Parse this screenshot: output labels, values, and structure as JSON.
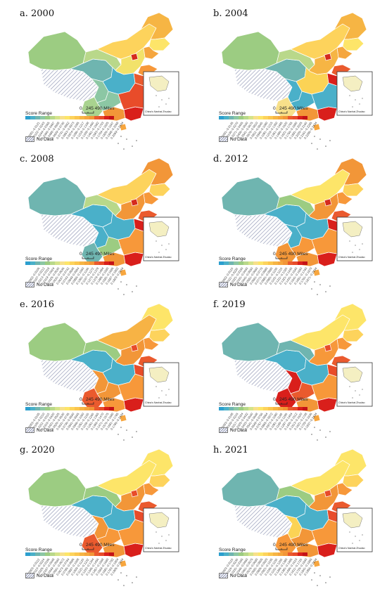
{
  "panels": [
    {
      "title": "a. 2000",
      "colors": {
        "xinjiang": "#9ccc82",
        "tibet": "hatch",
        "qinghai": "#6fb5b0",
        "gansu": "#b9d88a",
        "innermongolia": "#fdd35c",
        "heilongjiang": "#f6b544",
        "jilin": "#fde569",
        "liaoning": "#f5a63e",
        "north": "#f2e26a",
        "beijing": "#d52a1e",
        "shandong": "#f7983a",
        "central": "#4ab0c9",
        "sichuan": "#8cc7a4",
        "yunnan": "#a9d38f",
        "guizhou": "#8cc7a4",
        "guangxi": "#f29638",
        "guangdong": "#d91f1b",
        "southeast": "#e84c2a",
        "jiangsu": "#ea5a2e",
        "hainan": "#f7a63e",
        "taiwan": "#5aaed2"
      }
    },
    {
      "title": "b. 2004",
      "colors": {
        "xinjiang": "#9ccc82",
        "tibet": "hatch",
        "qinghai": "#6fb5b0",
        "gansu": "#b9d88a",
        "innermongolia": "#fdd35c",
        "heilongjiang": "#f6b544",
        "jilin": "#fde569",
        "liaoning": "#f5a63e",
        "north": "#f6b544",
        "beijing": "#d52a1e",
        "shandong": "#ea5a2e",
        "central": "#fbd355",
        "sichuan": "#4ab0c9",
        "yunnan": "#f7e08a",
        "guizhou": "#4ab0c9",
        "guangxi": "#f29638",
        "guangdong": "#d91f1b",
        "southeast": "#4ab0c9",
        "jiangsu": "#d91f1b",
        "hainan": "#f7a63e",
        "taiwan": "#5aaed2"
      }
    },
    {
      "title": "c. 2008",
      "colors": {
        "xinjiang": "#6fb5b0",
        "tibet": "hatch",
        "qinghai": "#4ab0c9",
        "gansu": "#b9d88a",
        "innermongolia": "#fdd35c",
        "heilongjiang": "#f29638",
        "jilin": "#fdd35c",
        "liaoning": "#f7983a",
        "north": "#f29638",
        "beijing": "#d52a1e",
        "shandong": "#ea5a2e",
        "central": "#4ab0c9",
        "sichuan": "#4ab0c9",
        "yunnan": "#6fb5b0",
        "guizhou": "#9ccc82",
        "guangxi": "#f29638",
        "guangdong": "#d91f1b",
        "southeast": "#f7983a",
        "jiangsu": "#d91f1b",
        "hainan": "#f7a63e",
        "taiwan": "#5aaed2"
      }
    },
    {
      "title": "d. 2012",
      "colors": {
        "xinjiang": "#6fb5b0",
        "tibet": "hatch",
        "qinghai": "#4ab0c9",
        "gansu": "#9ccc82",
        "innermongolia": "#fde569",
        "heilongjiang": "#f29638",
        "jilin": "#fdd35c",
        "liaoning": "#f7983a",
        "north": "#f29638",
        "beijing": "#d52a1e",
        "shandong": "#ea5a2e",
        "central": "#4ab0c9",
        "sichuan": "#4ab0c9",
        "yunnan": "#f29638",
        "guizhou": "#f7983a",
        "guangxi": "#f29638",
        "guangdong": "#d91f1b",
        "southeast": "#f7983a",
        "jiangsu": "#d91f1b",
        "hainan": "#f7a63e",
        "taiwan": "#5aaed2"
      }
    },
    {
      "title": "e. 2016",
      "colors": {
        "xinjiang": "#9ccc82",
        "tibet": "hatch",
        "qinghai": "#4ab0c9",
        "gansu": "#9ccc82",
        "innermongolia": "#f7b345",
        "heilongjiang": "#fde569",
        "jilin": "#fdd35c",
        "liaoning": "#f7983a",
        "north": "#f29638",
        "beijing": "#e84c2a",
        "shandong": "#ea5a2e",
        "central": "#4ab0c9",
        "sichuan": "#f29638",
        "yunnan": "#ea5a2e",
        "guizhou": "#f29638",
        "guangxi": "#f7983a",
        "guangdong": "#d91f1b",
        "southeast": "#f7983a",
        "jiangsu": "#e84c2a",
        "hainan": "#f7a63e",
        "taiwan": "#5aaed2"
      }
    },
    {
      "title": "f. 2019",
      "colors": {
        "xinjiang": "#6fb5b0",
        "tibet": "hatch",
        "qinghai": "#4ab0c9",
        "gansu": "#6fb5b0",
        "innermongolia": "#fde569",
        "heilongjiang": "#fde569",
        "jilin": "#fdd35c",
        "liaoning": "#f7983a",
        "north": "#f7983a",
        "beijing": "#e84c2a",
        "shandong": "#ea5a2e",
        "central": "#4ab0c9",
        "sichuan": "#d91f1b",
        "yunnan": "#d91f1b",
        "guizhou": "#ea5a2e",
        "guangxi": "#f29638",
        "guangdong": "#d91f1b",
        "southeast": "#f7983a",
        "jiangsu": "#e84c2a",
        "hainan": "#f7a63e",
        "taiwan": "#5aaed2"
      }
    },
    {
      "title": "g. 2020",
      "colors": {
        "xinjiang": "#9ccc82",
        "tibet": "hatch",
        "qinghai": "#4ab0c9",
        "gansu": "#9ccc82",
        "innermongolia": "#fde569",
        "heilongjiang": "#fde569",
        "jilin": "#fdd35c",
        "liaoning": "#f7983a",
        "north": "#f29638",
        "beijing": "#e84c2a",
        "shandong": "#ea5a2e",
        "central": "#4ab0c9",
        "sichuan": "#f29638",
        "yunnan": "#ea5a2e",
        "guizhou": "#f7983a",
        "guangxi": "#f29638",
        "guangdong": "#d91f1b",
        "southeast": "#f7983a",
        "jiangsu": "#e84c2a",
        "hainan": "#f7a63e",
        "taiwan": "#5aaed2"
      }
    },
    {
      "title": "h. 2021",
      "colors": {
        "xinjiang": "#6fb5b0",
        "tibet": "hatch",
        "qinghai": "#4ab0c9",
        "gansu": "#9ccc82",
        "innermongolia": "#fde569",
        "heilongjiang": "#fde569",
        "jilin": "#fdd35c",
        "liaoning": "#f7983a",
        "north": "#f29638",
        "beijing": "#e84c2a",
        "shandong": "#ea5a2e",
        "central": "#4ab0c9",
        "sichuan": "#fbd355",
        "yunnan": "#f7983a",
        "guizhou": "#f29638",
        "guangxi": "#f29638",
        "guangdong": "#d91f1b",
        "southeast": "#f7983a",
        "jiangsu": "#e84c2a",
        "hainan": "#f7a63e",
        "taiwan": "#5aaed2"
      }
    }
  ],
  "legend": {
    "title": "Score Range",
    "no_data": "No Data",
    "scale_zero": "0",
    "scale_text": "245 490 Miles",
    "inset_label": "China's Nanhai Zhudao",
    "colors": [
      "#2c9fce",
      "#4ab0c9",
      "#6fb5b0",
      "#8cc7a4",
      "#9ccc82",
      "#b9d88a",
      "#d5e38a",
      "#f7e08a",
      "#fde569",
      "#fdd35c",
      "#fbc64e",
      "#f6b544",
      "#f5a63e",
      "#f29638",
      "#ea5a2e",
      "#e84c2a",
      "#d91f1b",
      "#c41217"
    ],
    "ticks": [
      [
        "0.0001~0.0121",
        "0.0122~0.0243",
        "0.0244~0.0365",
        "0.0366~0.0487",
        "0.0488~0.0608",
        "0.0609~0.0730",
        "0.0731~0.0852",
        "0.0853~0.0973",
        "0.0974~0.1095",
        "0.1096~0.1217",
        "0.1218~0.1338",
        "0.1339~0.1460",
        "0.1461~0.1582",
        "0.1583~0.1703",
        "0.1704~0.1825",
        "0.1826~0.1947",
        "0.1948~0.2068",
        "0.2069~0.2434"
      ],
      [
        "0.0001~0.0135",
        "0.0136~0.0270",
        "0.0271~0.0405",
        "0.0406~0.0540",
        "0.0541~0.0675",
        "0.0676~0.0810",
        "0.0811~0.0945",
        "0.0946~0.1080",
        "0.1081~0.1215",
        "0.1216~0.1350",
        "0.1351~0.1485",
        "0.1486~0.1620",
        "0.1621~0.1755",
        "0.1756~0.1890",
        "0.1891~0.2025",
        "0.2026~0.2160",
        "0.2161~0.2295",
        "0.2296~0.2434"
      ],
      [
        "0.0002~0.0106",
        "0.0107~0.0212",
        "0.0213~0.0318",
        "0.0319~0.0424",
        "0.0425~0.0530",
        "0.0531~0.0636",
        "0.0637~0.0742",
        "0.0743~0.0848",
        "0.0849~0.0954",
        "0.0955~0.1060",
        "0.1061~0.1166",
        "0.1167~0.1272",
        "0.1273~0.1378",
        "0.1379~0.1484",
        "0.1485~0.1590",
        "0.1591~0.1696",
        "0.1697~0.1802",
        "0.1803~0.2434"
      ],
      [
        "0.0002~0.0110",
        "0.0111~0.0220",
        "0.0221~0.0330",
        "0.0331~0.0440",
        "0.0441~0.0550",
        "0.0551~0.0660",
        "0.0661~0.0770",
        "0.0771~0.0880",
        "0.0881~0.0990",
        "0.0991~0.1100",
        "0.1101~0.1210",
        "0.1211~0.1320",
        "0.1321~0.1430",
        "0.1431~0.1540",
        "0.1541~0.1650",
        "0.1651~0.1760",
        "0.1761~0.1870",
        "0.1871~0.2434"
      ],
      [
        "0.0003~0.0105",
        "0.0106~0.0210",
        "0.0211~0.0315",
        "0.0316~0.0420",
        "0.0421~0.0525",
        "0.0526~0.0630",
        "0.0631~0.0735",
        "0.0736~0.0840",
        "0.0841~0.0945",
        "0.0946~0.1050",
        "0.1051~0.1155",
        "0.1156~0.1260",
        "0.1261~0.1365",
        "0.1366~0.1470",
        "0.1471~0.1575",
        "0.1576~0.1680",
        "0.1681~0.1785",
        "0.1786~0.2434"
      ],
      [
        "0.0003~0.0108",
        "0.0109~0.0216",
        "0.0217~0.0324",
        "0.0325~0.0432",
        "0.0433~0.0540",
        "0.0541~0.0648",
        "0.0649~0.0756",
        "0.0757~0.0864",
        "0.0865~0.0972",
        "0.0973~0.1080",
        "0.1081~0.1188",
        "0.1189~0.1296",
        "0.1297~0.1404",
        "0.1405~0.1512",
        "0.1513~0.1620",
        "0.1621~0.1728",
        "0.1729~0.1836",
        "0.1837~0.2434"
      ],
      [
        "0.0003~0.0112",
        "0.0113~0.0224",
        "0.0225~0.0336",
        "0.0337~0.0448",
        "0.0449~0.0560",
        "0.0561~0.0672",
        "0.0673~0.0784",
        "0.0785~0.0896",
        "0.0897~0.1008",
        "0.1009~0.1120",
        "0.1121~0.1232",
        "0.1233~0.1344",
        "0.1345~0.1456",
        "0.1457~0.1568",
        "0.1569~0.1680",
        "0.1681~0.1792",
        "0.1793~0.1904",
        "0.1905~0.2434"
      ],
      [
        "0.0003~0.0115",
        "0.0116~0.0230",
        "0.0231~0.0345",
        "0.0346~0.0460",
        "0.0461~0.0575",
        "0.0576~0.0690",
        "0.0691~0.0805",
        "0.0806~0.0920",
        "0.0921~0.1035",
        "0.1036~0.1150",
        "0.1151~0.1265",
        "0.1266~0.1380",
        "0.1381~0.1495",
        "0.1496~0.1610",
        "0.1611~0.1725",
        "0.1726~0.1840",
        "0.1841~0.1955",
        "0.1956~0.2434"
      ]
    ]
  }
}
